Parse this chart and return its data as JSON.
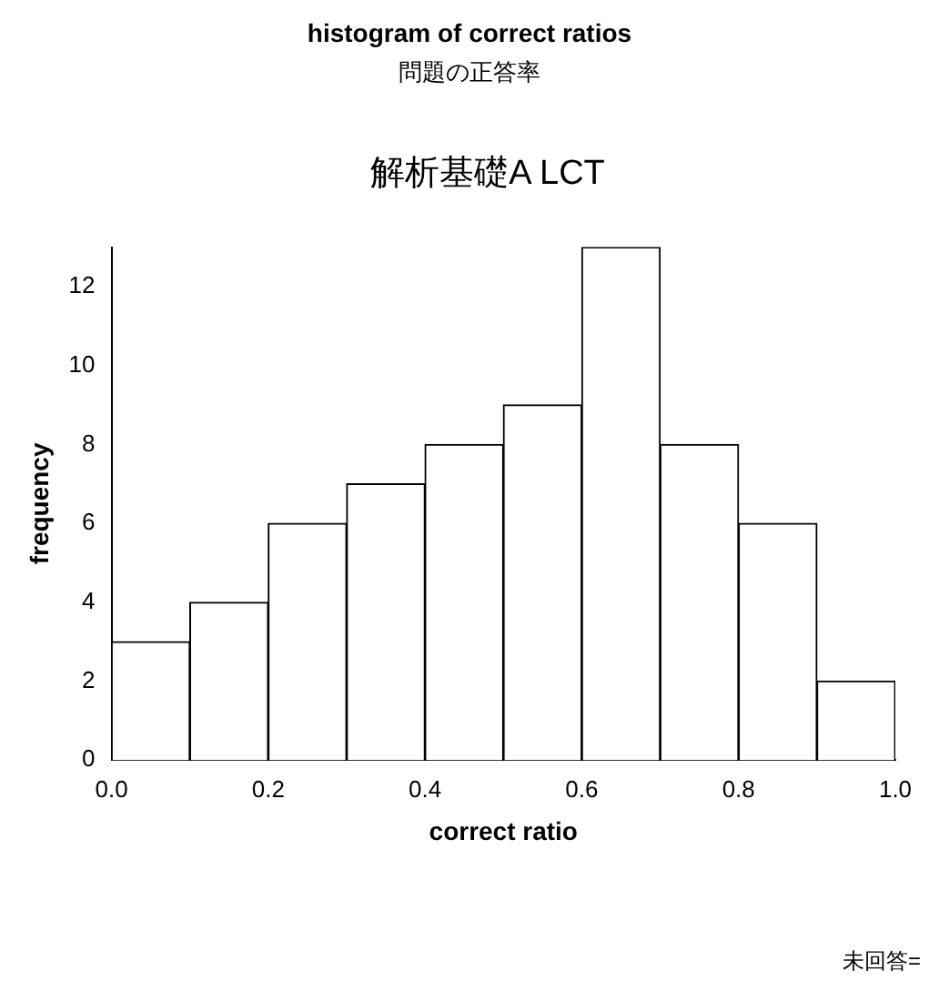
{
  "chart_data": {
    "type": "histogram",
    "title": "histogram of correct ratios",
    "subtitle": "問題の正答率",
    "annotations": [
      "解析基礎A LCT",
      "未回答="
    ],
    "bins": [
      0,
      0.1,
      0.2,
      0.3,
      0.4,
      0.5,
      0.6,
      0.7,
      0.8,
      0.9,
      1.0
    ],
    "values": [
      3,
      4,
      6,
      7,
      8,
      9,
      13,
      8,
      6,
      2
    ],
    "color": "#ffffff",
    "xlabel": "correct ratio",
    "ylabel": "frequency",
    "xlim": [
      0,
      1
    ],
    "xticks": [
      {
        "value": 0,
        "label": "0.0"
      },
      {
        "value": 0.2,
        "label": "0.2"
      },
      {
        "value": 0.4,
        "label": "0.4"
      },
      {
        "value": 0.6,
        "label": "0.6"
      },
      {
        "value": 0.8,
        "label": "0.8"
      },
      {
        "value": 1,
        "label": "1.0"
      }
    ],
    "ylim": [
      0,
      13
    ],
    "yticks": [
      0,
      2,
      4,
      6,
      8,
      10,
      12
    ],
    "grid": false,
    "legend": false
  }
}
